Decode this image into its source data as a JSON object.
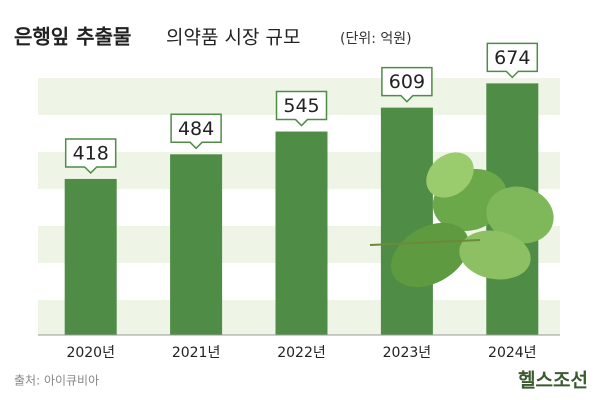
{
  "chart_data": {
    "type": "bar",
    "title": "은행잎 추출물",
    "subtitle": "의약품 시장 규모",
    "unit": "(단위: 억원)",
    "categories": [
      "2020년",
      "2021년",
      "2022년",
      "2023년",
      "2024년"
    ],
    "values": [
      418,
      484,
      545,
      609,
      674
    ],
    "color": "#4f8c46",
    "ylim": [
      0,
      750
    ],
    "source": "출처: 아이큐비아",
    "brand": "헬스조선"
  }
}
